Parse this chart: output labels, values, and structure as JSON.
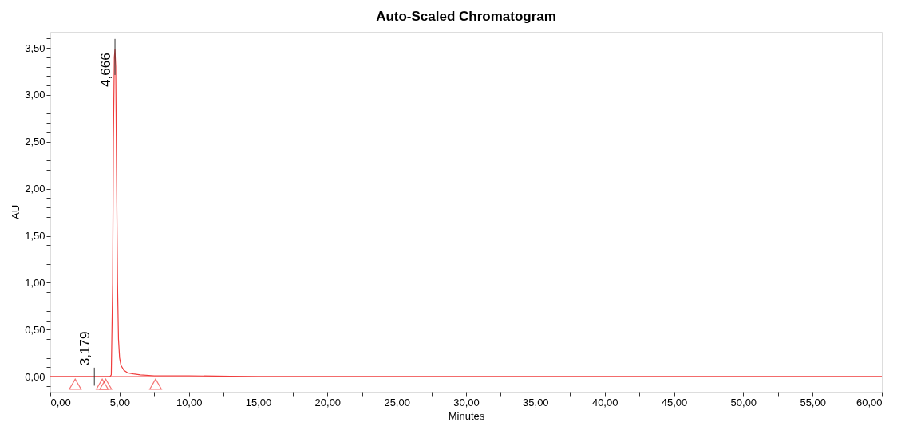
{
  "chart_data": {
    "type": "line",
    "title": "Auto-Scaled Chromatogram",
    "xlabel": "Minutes",
    "ylabel": "AU",
    "xlim": [
      0,
      60
    ],
    "ylim": [
      -0.16,
      3.67
    ],
    "xticks": [
      {
        "value": 0,
        "label": "0,00"
      },
      {
        "value": 2.5,
        "label": null
      },
      {
        "value": 5,
        "label": "5,00"
      },
      {
        "value": 7.5,
        "label": null
      },
      {
        "value": 10,
        "label": "10,00"
      },
      {
        "value": 12.5,
        "label": null
      },
      {
        "value": 15,
        "label": "15,00"
      },
      {
        "value": 17.5,
        "label": null
      },
      {
        "value": 20,
        "label": "20,00"
      },
      {
        "value": 22.5,
        "label": null
      },
      {
        "value": 25,
        "label": "25,00"
      },
      {
        "value": 27.5,
        "label": null
      },
      {
        "value": 30,
        "label": "30,00"
      },
      {
        "value": 32.5,
        "label": null
      },
      {
        "value": 35,
        "label": "35,00"
      },
      {
        "value": 37.5,
        "label": null
      },
      {
        "value": 40,
        "label": "40,00"
      },
      {
        "value": 42.5,
        "label": null
      },
      {
        "value": 45,
        "label": "45,00"
      },
      {
        "value": 47.5,
        "label": null
      },
      {
        "value": 50,
        "label": "50,00"
      },
      {
        "value": 52.5,
        "label": null
      },
      {
        "value": 55,
        "label": "55,00"
      },
      {
        "value": 57.5,
        "label": null
      },
      {
        "value": 60,
        "label": "60,00"
      }
    ],
    "yticks": [
      {
        "value": -0.1,
        "label": null
      },
      {
        "value": 0,
        "label": "0,00"
      },
      {
        "value": 0.1,
        "label": null
      },
      {
        "value": 0.2,
        "label": null
      },
      {
        "value": 0.3,
        "label": null
      },
      {
        "value": 0.4,
        "label": null
      },
      {
        "value": 0.5,
        "label": "0,50"
      },
      {
        "value": 0.6,
        "label": null
      },
      {
        "value": 0.7,
        "label": null
      },
      {
        "value": 0.8,
        "label": null
      },
      {
        "value": 0.9,
        "label": null
      },
      {
        "value": 1,
        "label": "1,00"
      },
      {
        "value": 1.1,
        "label": null
      },
      {
        "value": 1.2,
        "label": null
      },
      {
        "value": 1.3,
        "label": null
      },
      {
        "value": 1.4,
        "label": null
      },
      {
        "value": 1.5,
        "label": "1,50"
      },
      {
        "value": 1.6,
        "label": null
      },
      {
        "value": 1.7,
        "label": null
      },
      {
        "value": 1.8,
        "label": null
      },
      {
        "value": 1.9,
        "label": null
      },
      {
        "value": 2,
        "label": "2,00"
      },
      {
        "value": 2.1,
        "label": null
      },
      {
        "value": 2.2,
        "label": null
      },
      {
        "value": 2.3,
        "label": null
      },
      {
        "value": 2.4,
        "label": null
      },
      {
        "value": 2.5,
        "label": "2,50"
      },
      {
        "value": 2.6,
        "label": null
      },
      {
        "value": 2.7,
        "label": null
      },
      {
        "value": 2.8,
        "label": null
      },
      {
        "value": 2.9,
        "label": null
      },
      {
        "value": 3,
        "label": "3,00"
      },
      {
        "value": 3.1,
        "label": null
      },
      {
        "value": 3.2,
        "label": null
      },
      {
        "value": 3.3,
        "label": null
      },
      {
        "value": 3.4,
        "label": null
      },
      {
        "value": 3.5,
        "label": "3,50"
      },
      {
        "value": 3.6,
        "label": null
      }
    ],
    "grid": false,
    "legend": false,
    "ref_lines": [
      {
        "axis": "y",
        "value": 0,
        "color": "#f03c3c"
      }
    ],
    "series": [
      {
        "color": "#f03c3c",
        "x": [
          0,
          1,
          2,
          3,
          4,
          4.3,
          4.4,
          4.5,
          4.55,
          4.62,
          4.666,
          4.72,
          4.78,
          4.85,
          4.92,
          5.0,
          5.1,
          5.3,
          5.6,
          6,
          6.5,
          7.5,
          10,
          15,
          30,
          60
        ],
        "values": [
          0,
          0,
          0,
          0,
          0,
          0,
          0.02,
          1.0,
          2.5,
          3.4,
          3.48,
          3.3,
          2.2,
          1.0,
          0.4,
          0.2,
          0.12,
          0.07,
          0.04,
          0.03,
          0.02,
          0.01,
          0.01,
          0,
          0,
          0
        ]
      },
      {
        "type": "scatter",
        "color": "#f03c3c",
        "marker": "triangle",
        "x": [
          1.8,
          3.75,
          4.0,
          7.6
        ],
        "values": [
          -0.08,
          -0.08,
          -0.08,
          -0.08
        ]
      }
    ],
    "annotations": [
      {
        "text": "3,179",
        "x": 3.179,
        "y": 0
      },
      {
        "text": "4,666",
        "x": 4.666,
        "y": 3.48
      }
    ]
  }
}
